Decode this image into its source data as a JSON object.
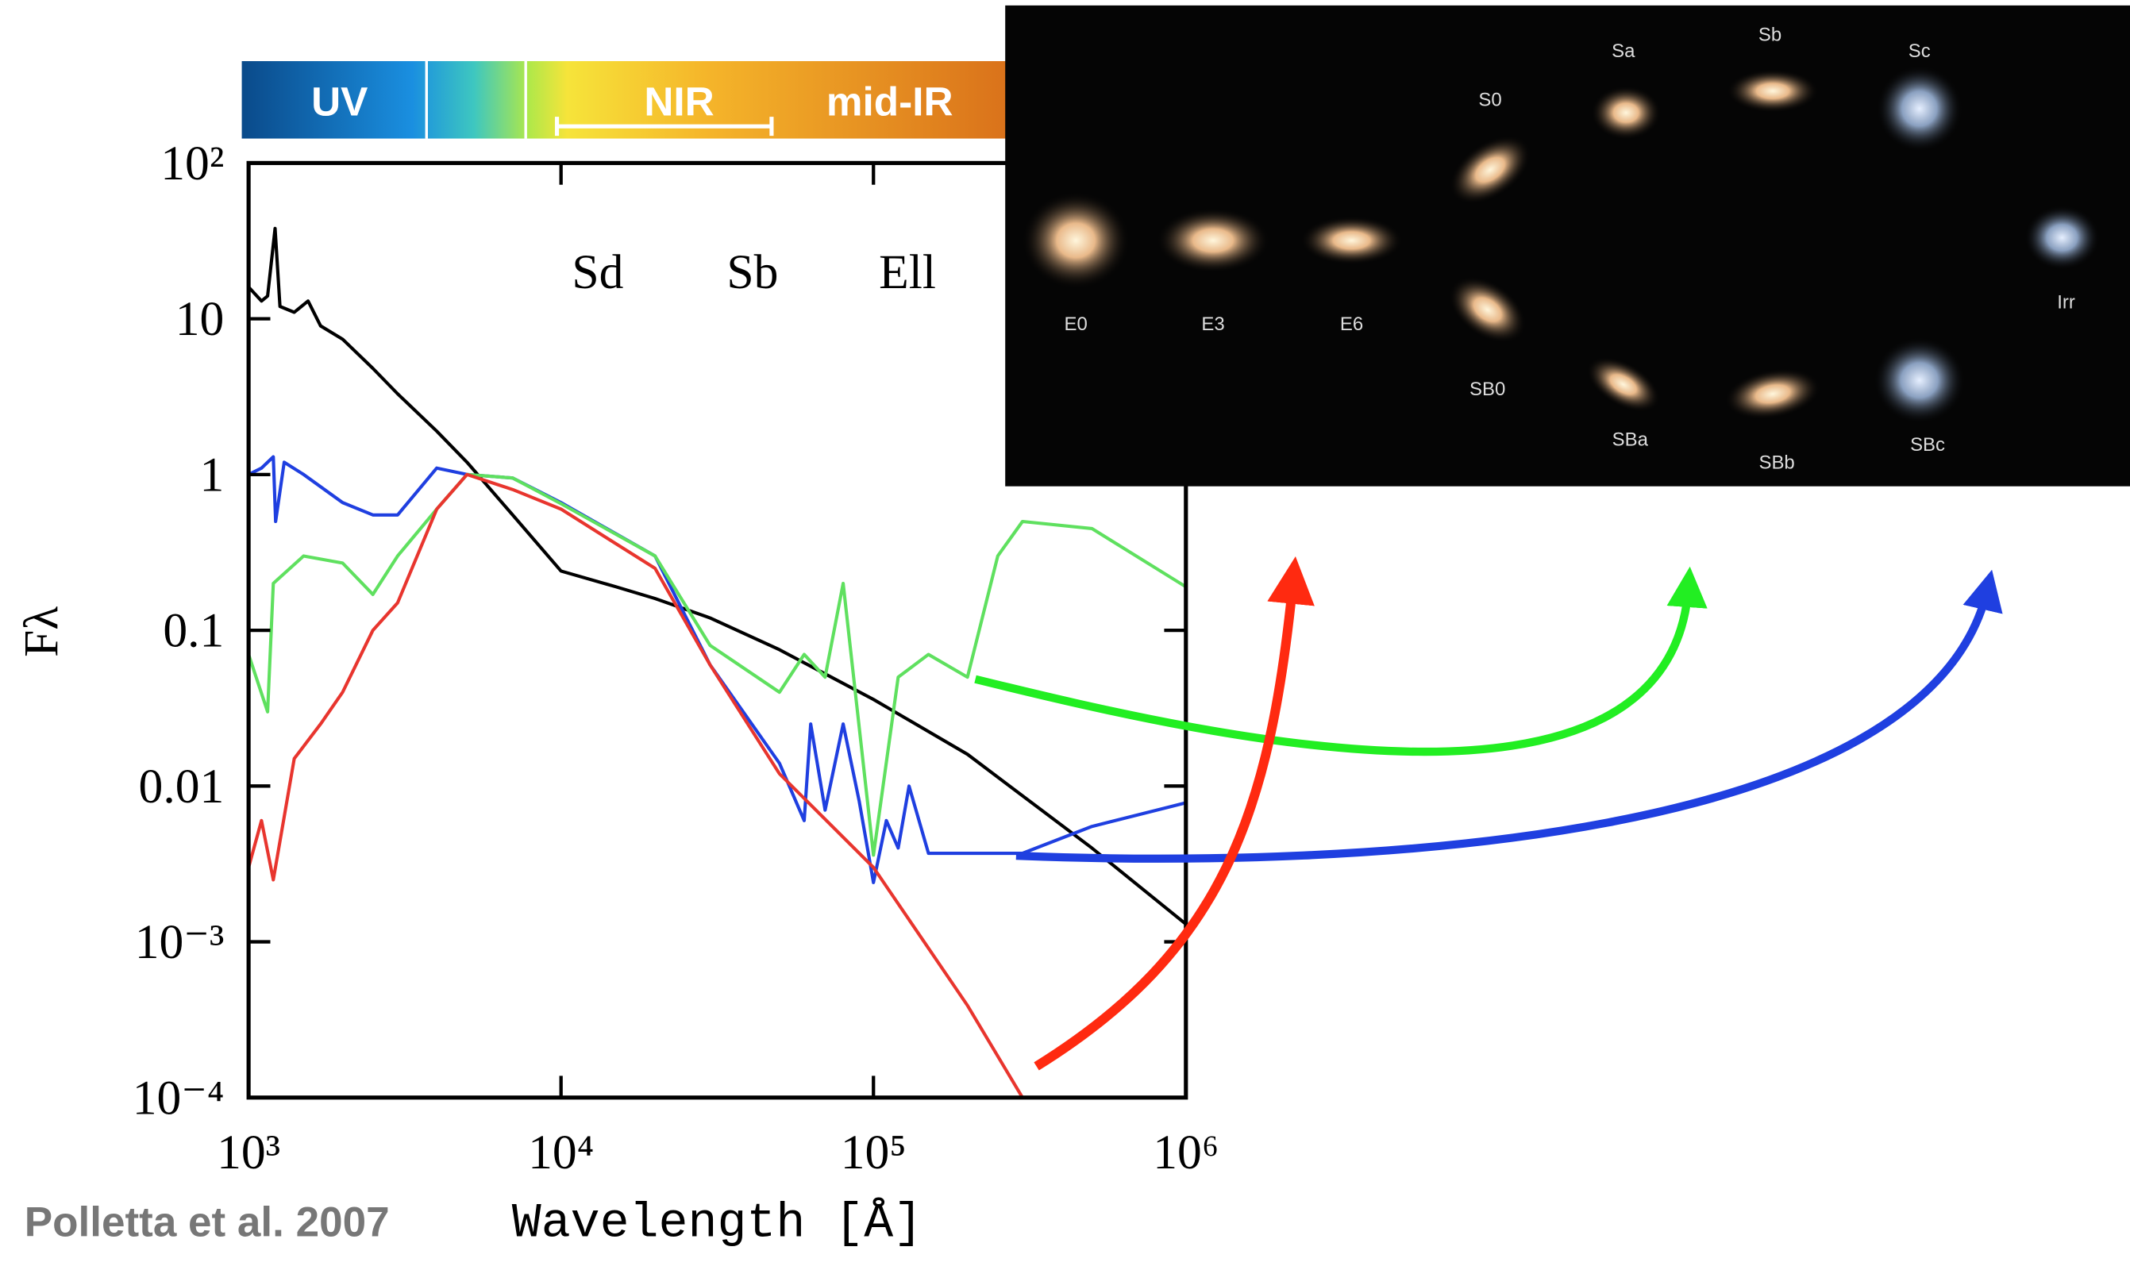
{
  "chart_data": {
    "type": "line",
    "xlabel": "Wavelength [Å]",
    "ylabel": "Fλ",
    "annotation": "Polletta et al. 2007",
    "xlog": true,
    "ylog": true,
    "xlim": [
      1000,
      1000000
    ],
    "ylim": [
      0.0001,
      100
    ],
    "xticks": [
      {
        "value": 1000,
        "label": "10³"
      },
      {
        "value": 10000,
        "label": "10⁴"
      },
      {
        "value": 100000,
        "label": "10⁵"
      },
      {
        "value": 1000000,
        "label": "10⁶"
      }
    ],
    "yticks": [
      {
        "value": 0.0001,
        "label": "10⁻⁴"
      },
      {
        "value": 0.001,
        "label": "10⁻³"
      },
      0.01,
      0.1,
      1,
      10,
      {
        "value": 100,
        "label": "10²"
      }
    ],
    "series": [
      {
        "color": "#000000",
        "x": [
          1000,
          1100,
          1150,
          1216,
          1260,
          1400,
          1550,
          1700,
          2000,
          2500,
          3000,
          4000,
          5000,
          7000,
          10000,
          15000,
          20000,
          30000,
          50000,
          100000,
          200000,
          500000,
          1000000
        ],
        "values": [
          16,
          13,
          14,
          38,
          12,
          11,
          13,
          9,
          7.4,
          4.8,
          3.3,
          1.9,
          1.2,
          0.55,
          0.24,
          0.19,
          0.16,
          0.12,
          0.075,
          0.036,
          0.016,
          0.004,
          0.0013
        ]
      },
      {
        "name": "Sd",
        "color": "#1f3fe0",
        "x": [
          1000,
          1100,
          1200,
          1220,
          1300,
          1500,
          2000,
          2500,
          3000,
          4000,
          5000,
          7000,
          10000,
          20000,
          30000,
          50000,
          60000,
          63000,
          70000,
          80000,
          90000,
          100000,
          110000,
          120000,
          130000,
          150000,
          300000,
          500000,
          1000000
        ],
        "values": [
          1.0,
          1.1,
          1.3,
          0.5,
          1.2,
          1.0,
          0.66,
          0.55,
          0.55,
          1.1,
          1.0,
          0.95,
          0.66,
          0.3,
          0.06,
          0.014,
          0.006,
          0.025,
          0.007,
          0.025,
          0.008,
          0.0024,
          0.006,
          0.004,
          0.01,
          0.0037,
          0.0037,
          0.0055,
          0.0078
        ]
      },
      {
        "name": "Sb",
        "color": "#5fe05f",
        "x": [
          1000,
          1150,
          1200,
          1500,
          2000,
          2500,
          3000,
          4000,
          5000,
          7000,
          10000,
          20000,
          30000,
          50000,
          60000,
          70000,
          80000,
          100000,
          120000,
          150000,
          200000,
          250000,
          300000,
          500000,
          1000000
        ],
        "values": [
          0.07,
          0.03,
          0.2,
          0.3,
          0.27,
          0.17,
          0.3,
          0.6,
          1.0,
          0.95,
          0.65,
          0.3,
          0.08,
          0.04,
          0.07,
          0.05,
          0.2,
          0.0036,
          0.05,
          0.07,
          0.05,
          0.3,
          0.5,
          0.45,
          0.19
        ]
      },
      {
        "name": "Ell",
        "color": "#e8352e",
        "x": [
          1000,
          1100,
          1200,
          1400,
          1700,
          2000,
          2500,
          3000,
          4000,
          5000,
          7000,
          10000,
          20000,
          30000,
          50000,
          100000,
          200000,
          300000
        ],
        "values": [
          0.003,
          0.006,
          0.0025,
          0.015,
          0.025,
          0.04,
          0.1,
          0.15,
          0.6,
          1.0,
          0.8,
          0.6,
          0.25,
          0.06,
          0.012,
          0.003,
          0.00039,
          0.0001
        ]
      }
    ]
  },
  "bands": [
    "UV",
    "NIR",
    "mid-IR"
  ],
  "galaxy_labels": [
    "E0",
    "E3",
    "E6",
    "S0",
    "Sa",
    "Sb",
    "Sc",
    "Irr",
    "SB0",
    "SBa",
    "SBb",
    "SBc"
  ]
}
